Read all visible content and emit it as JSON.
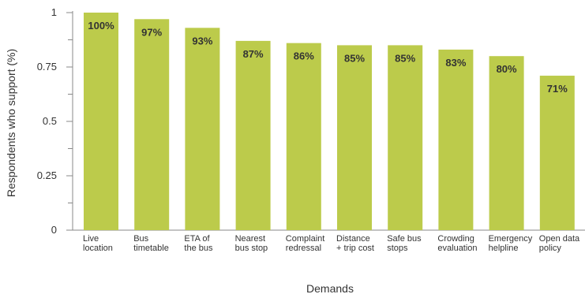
{
  "chart_data": {
    "type": "bar",
    "categories": [
      [
        "Live",
        "location"
      ],
      [
        "Bus",
        "timetable"
      ],
      [
        "ETA of",
        "the bus"
      ],
      [
        "Nearest",
        "bus stop"
      ],
      [
        "Complaint",
        "redressal"
      ],
      [
        "Distance",
        "+ trip cost"
      ],
      [
        "Safe bus",
        "stops"
      ],
      [
        "Crowding",
        "evaluation"
      ],
      [
        "Emergency",
        "helpline"
      ],
      [
        "Open data",
        "policy"
      ]
    ],
    "values": [
      1.0,
      0.97,
      0.93,
      0.87,
      0.86,
      0.85,
      0.85,
      0.83,
      0.8,
      0.71
    ],
    "data_labels": [
      "100%",
      "97%",
      "93%",
      "87%",
      "86%",
      "85%",
      "85%",
      "83%",
      "80%",
      "71%"
    ],
    "yticks": [
      0,
      0.25,
      0.5,
      0.75,
      1
    ],
    "ytick_labels": [
      "0",
      "0.25",
      "0.5",
      "0.75",
      "1"
    ],
    "ylim": [
      0,
      1
    ],
    "xlabel": "Demands",
    "ylabel": "Respondents who support (%)",
    "title": "",
    "grid": false,
    "legend": "none",
    "bar_color": "#bccb4b",
    "axis_color": "#888888"
  }
}
